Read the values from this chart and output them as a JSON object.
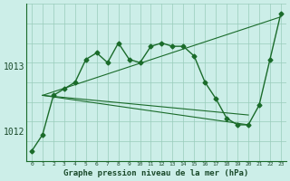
{
  "background_color": "#cceee8",
  "plot_bg_color": "#cceee8",
  "grid_color": "#99ccbb",
  "line_color": "#1a6b2a",
  "xlabel": "Graphe pression niveau de la mer (hPa)",
  "ylim": [
    1011.55,
    1013.95
  ],
  "xlim": [
    -0.5,
    23.5
  ],
  "yticks": [
    1012,
    1013
  ],
  "xticks": [
    0,
    1,
    2,
    3,
    4,
    5,
    6,
    7,
    8,
    9,
    10,
    11,
    12,
    13,
    14,
    15,
    16,
    17,
    18,
    19,
    20,
    21,
    22,
    23
  ],
  "series_main": {
    "x": [
      0,
      1,
      2,
      3,
      4,
      5,
      6,
      7,
      8,
      9,
      10,
      11,
      12,
      13,
      14,
      15,
      16,
      17,
      18,
      19,
      20,
      21,
      22,
      23
    ],
    "y": [
      1011.7,
      1011.95,
      1012.55,
      1012.65,
      1012.75,
      1013.1,
      1013.2,
      1013.05,
      1013.35,
      1013.1,
      1013.05,
      1013.3,
      1013.35,
      1013.3,
      1013.3,
      1013.15,
      1012.75,
      1012.5,
      1012.2,
      1012.1,
      1012.1,
      1012.4,
      1013.1,
      1013.8
    ]
  },
  "series_rising": {
    "x": [
      1,
      23
    ],
    "y": [
      1012.55,
      1013.75
    ]
  },
  "series_flat1": {
    "x": [
      1,
      20
    ],
    "y": [
      1012.55,
      1012.25
    ]
  },
  "series_flat2": {
    "x": [
      1,
      20
    ],
    "y": [
      1012.55,
      1012.1
    ]
  }
}
